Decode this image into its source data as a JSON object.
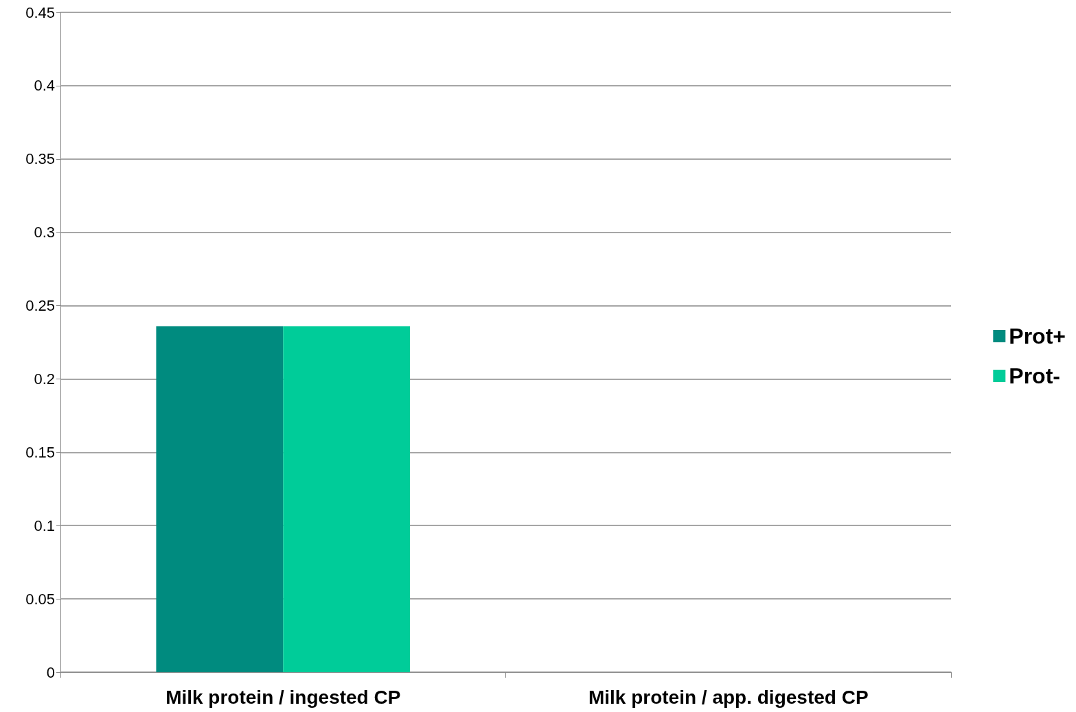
{
  "chart_data": {
    "type": "bar",
    "categories": [
      "Milk protein / ingested CP",
      "Milk protein / app. digested CP"
    ],
    "series": [
      {
        "name": "Prot+",
        "color": "#008b7f",
        "values": [
          0.236,
          null
        ]
      },
      {
        "name": "Prot-",
        "color": "#00cc99",
        "values": [
          0.236,
          null
        ]
      }
    ],
    "ylim": [
      0,
      0.45
    ],
    "yticks": [
      0,
      0.05,
      0.1,
      0.15,
      0.2,
      0.25,
      0.3,
      0.35,
      0.4,
      0.45
    ],
    "grid": "y",
    "legend": "right"
  }
}
